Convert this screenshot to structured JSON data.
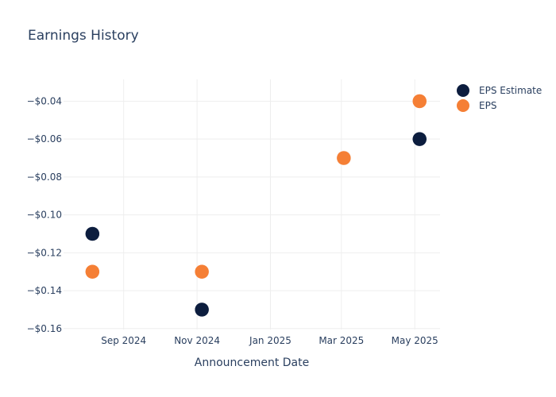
{
  "chart_data": {
    "type": "scatter",
    "title": "Earnings History",
    "xlabel": "Announcement Date",
    "ylabel": "",
    "x_ticks": [
      {
        "date": "2024-09-01",
        "label": "Sep 2024"
      },
      {
        "date": "2024-11-01",
        "label": "Nov 2024"
      },
      {
        "date": "2025-01-01",
        "label": "Jan 2025"
      },
      {
        "date": "2025-03-01",
        "label": "Mar 2025"
      },
      {
        "date": "2025-05-01",
        "label": "May 2025"
      }
    ],
    "xlim": [
      "2024-07-13",
      "2025-05-22"
    ],
    "y_ticks": [
      {
        "value": -0.16,
        "label": "−$0.16"
      },
      {
        "value": -0.14,
        "label": "−$0.14"
      },
      {
        "value": -0.12,
        "label": "−$0.12"
      },
      {
        "value": -0.1,
        "label": "−$0.10"
      },
      {
        "value": -0.08,
        "label": "−$0.08"
      },
      {
        "value": -0.06,
        "label": "−$0.06"
      },
      {
        "value": -0.04,
        "label": "−$0.04"
      }
    ],
    "ylim": [
      -0.1605,
      -0.0285
    ],
    "grid": true,
    "legend_position": "top-right",
    "series": [
      {
        "name": "EPS Estimate",
        "color": "#0c1d3e",
        "points": [
          {
            "x": "2024-08-06",
            "y": -0.11
          },
          {
            "x": "2024-11-05",
            "y": -0.15
          },
          {
            "x": "2025-03-03",
            "y": -0.07
          },
          {
            "x": "2025-05-05",
            "y": -0.06
          }
        ]
      },
      {
        "name": "EPS",
        "color": "#f57f35",
        "points": [
          {
            "x": "2024-08-06",
            "y": -0.13
          },
          {
            "x": "2024-11-05",
            "y": -0.13
          },
          {
            "x": "2025-03-03",
            "y": -0.07
          },
          {
            "x": "2025-05-05",
            "y": -0.04
          }
        ]
      }
    ]
  }
}
